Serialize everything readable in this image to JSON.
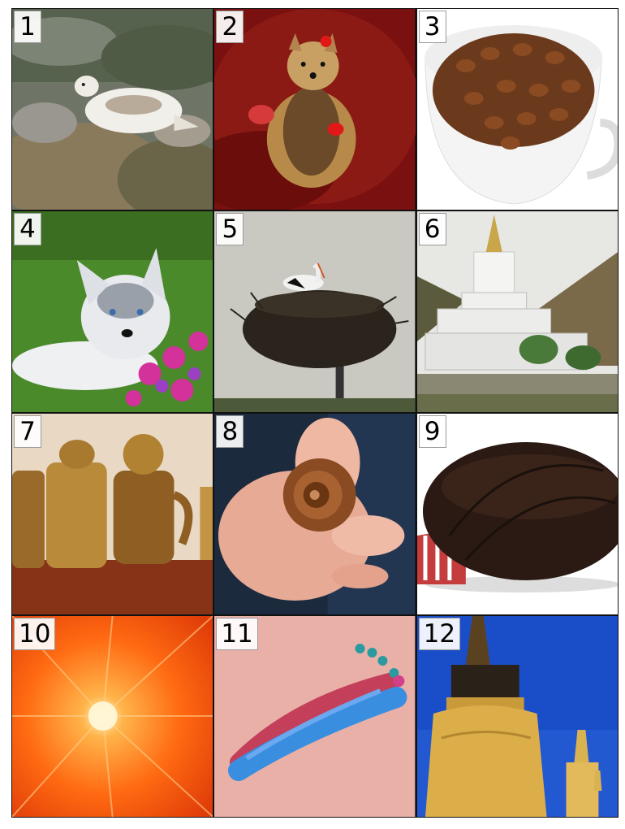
{
  "tiles": [
    {
      "label": "1",
      "subject": "ptarmigan-on-rocky-grass"
    },
    {
      "label": "2",
      "subject": "yorkshire-terrier-on-red"
    },
    {
      "label": "3",
      "subject": "cup-of-coffee-beans"
    },
    {
      "label": "4",
      "subject": "husky-puppy-with-flowers"
    },
    {
      "label": "5",
      "subject": "stork-in-nest"
    },
    {
      "label": "6",
      "subject": "white-stupa-mountains"
    },
    {
      "label": "7",
      "subject": "brass-teapots"
    },
    {
      "label": "8",
      "subject": "snail-in-hand"
    },
    {
      "label": "9",
      "subject": "leather-ball"
    },
    {
      "label": "10",
      "subject": "orange-burst"
    },
    {
      "label": "11",
      "subject": "pink-blue-toy"
    },
    {
      "label": "12",
      "subject": "golden-stupas-blue-sky"
    }
  ]
}
